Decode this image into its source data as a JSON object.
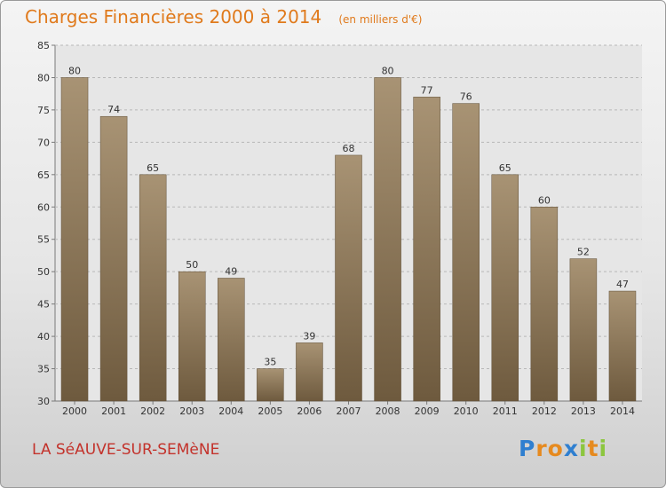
{
  "chart_data": {
    "type": "bar",
    "title": "Charges Financières 2000 à 2014",
    "unit_label": "(en milliers d'€)",
    "categories": [
      "2000",
      "2001",
      "2002",
      "2003",
      "2004",
      "2005",
      "2006",
      "2007",
      "2008",
      "2009",
      "2010",
      "2011",
      "2012",
      "2013",
      "2014"
    ],
    "values": [
      80,
      74,
      65,
      50,
      49,
      35,
      39,
      68,
      80,
      77,
      76,
      65,
      60,
      52,
      47
    ],
    "ylim": [
      30,
      85
    ],
    "yticks": [
      30,
      35,
      40,
      45,
      50,
      55,
      60,
      65,
      70,
      75,
      80,
      85
    ],
    "grid": true,
    "legend": "none",
    "bar_color_top": "#a89374",
    "bar_color_bottom": "#6e5a3e"
  },
  "city": "LA SéAUVE-SUR-SEMèNE",
  "brand": {
    "name": "Proxiti",
    "letters": [
      {
        "ch": "P",
        "color": "#2f7fd0"
      },
      {
        "ch": "r",
        "color": "#e68a1f"
      },
      {
        "ch": "o",
        "color": "#e68a1f"
      },
      {
        "ch": "x",
        "color": "#2f7fd0"
      },
      {
        "ch": "i",
        "color": "#8cc63f"
      },
      {
        "ch": "t",
        "color": "#e68a1f"
      },
      {
        "ch": "i",
        "color": "#8cc63f"
      }
    ]
  }
}
